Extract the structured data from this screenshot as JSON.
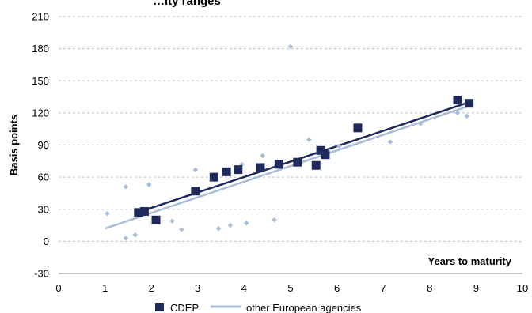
{
  "chart_data": {
    "type": "scatter",
    "title": "…ity ranges",
    "xlabel": "Years to maturity",
    "ylabel": "Basis points",
    "xlim": [
      0,
      10
    ],
    "ylim": [
      -30,
      210
    ],
    "x_ticks": [
      "0",
      "1",
      "2",
      "3",
      "4",
      "5",
      "6",
      "7",
      "8",
      "9",
      "10"
    ],
    "y_ticks": [
      "-30",
      "0",
      "30",
      "60",
      "90",
      "120",
      "150",
      "180",
      "210"
    ],
    "grid": "horizontal dashed",
    "legend_placement": "bottom",
    "series": [
      {
        "name": "CDEP",
        "color": "#1f2a5c",
        "marker": "square",
        "points": [
          {
            "x": 1.72,
            "y": 27
          },
          {
            "x": 1.85,
            "y": 28
          },
          {
            "x": 2.1,
            "y": 20
          },
          {
            "x": 2.95,
            "y": 47
          },
          {
            "x": 3.35,
            "y": 60
          },
          {
            "x": 3.62,
            "y": 65
          },
          {
            "x": 3.87,
            "y": 67
          },
          {
            "x": 4.35,
            "y": 69
          },
          {
            "x": 4.75,
            "y": 72
          },
          {
            "x": 5.15,
            "y": 74
          },
          {
            "x": 5.55,
            "y": 71
          },
          {
            "x": 5.65,
            "y": 85
          },
          {
            "x": 5.75,
            "y": 81
          },
          {
            "x": 6.45,
            "y": 106
          },
          {
            "x": 8.6,
            "y": 132
          },
          {
            "x": 8.85,
            "y": 129
          }
        ],
        "trend": [
          [
            1.7,
            27
          ],
          [
            8.85,
            130
          ]
        ]
      },
      {
        "name": "other European agencies",
        "color": "#a9bcd6",
        "marker": "diamond",
        "points": [
          {
            "x": 1.05,
            "y": 26
          },
          {
            "x": 1.45,
            "y": 51
          },
          {
            "x": 1.45,
            "y": 3
          },
          {
            "x": 1.65,
            "y": 6
          },
          {
            "x": 1.95,
            "y": 53
          },
          {
            "x": 2.45,
            "y": 19
          },
          {
            "x": 2.65,
            "y": 11
          },
          {
            "x": 2.95,
            "y": 67
          },
          {
            "x": 3.45,
            "y": 12
          },
          {
            "x": 3.7,
            "y": 15
          },
          {
            "x": 3.95,
            "y": 72
          },
          {
            "x": 4.05,
            "y": 17
          },
          {
            "x": 4.4,
            "y": 80
          },
          {
            "x": 4.65,
            "y": 20
          },
          {
            "x": 5.0,
            "y": 182
          },
          {
            "x": 5.4,
            "y": 95
          },
          {
            "x": 6.05,
            "y": 89
          },
          {
            "x": 7.15,
            "y": 93
          },
          {
            "x": 7.8,
            "y": 110
          },
          {
            "x": 8.6,
            "y": 120
          },
          {
            "x": 8.8,
            "y": 117
          }
        ],
        "trend": [
          [
            1.0,
            12
          ],
          [
            8.95,
            128
          ]
        ]
      }
    ]
  }
}
